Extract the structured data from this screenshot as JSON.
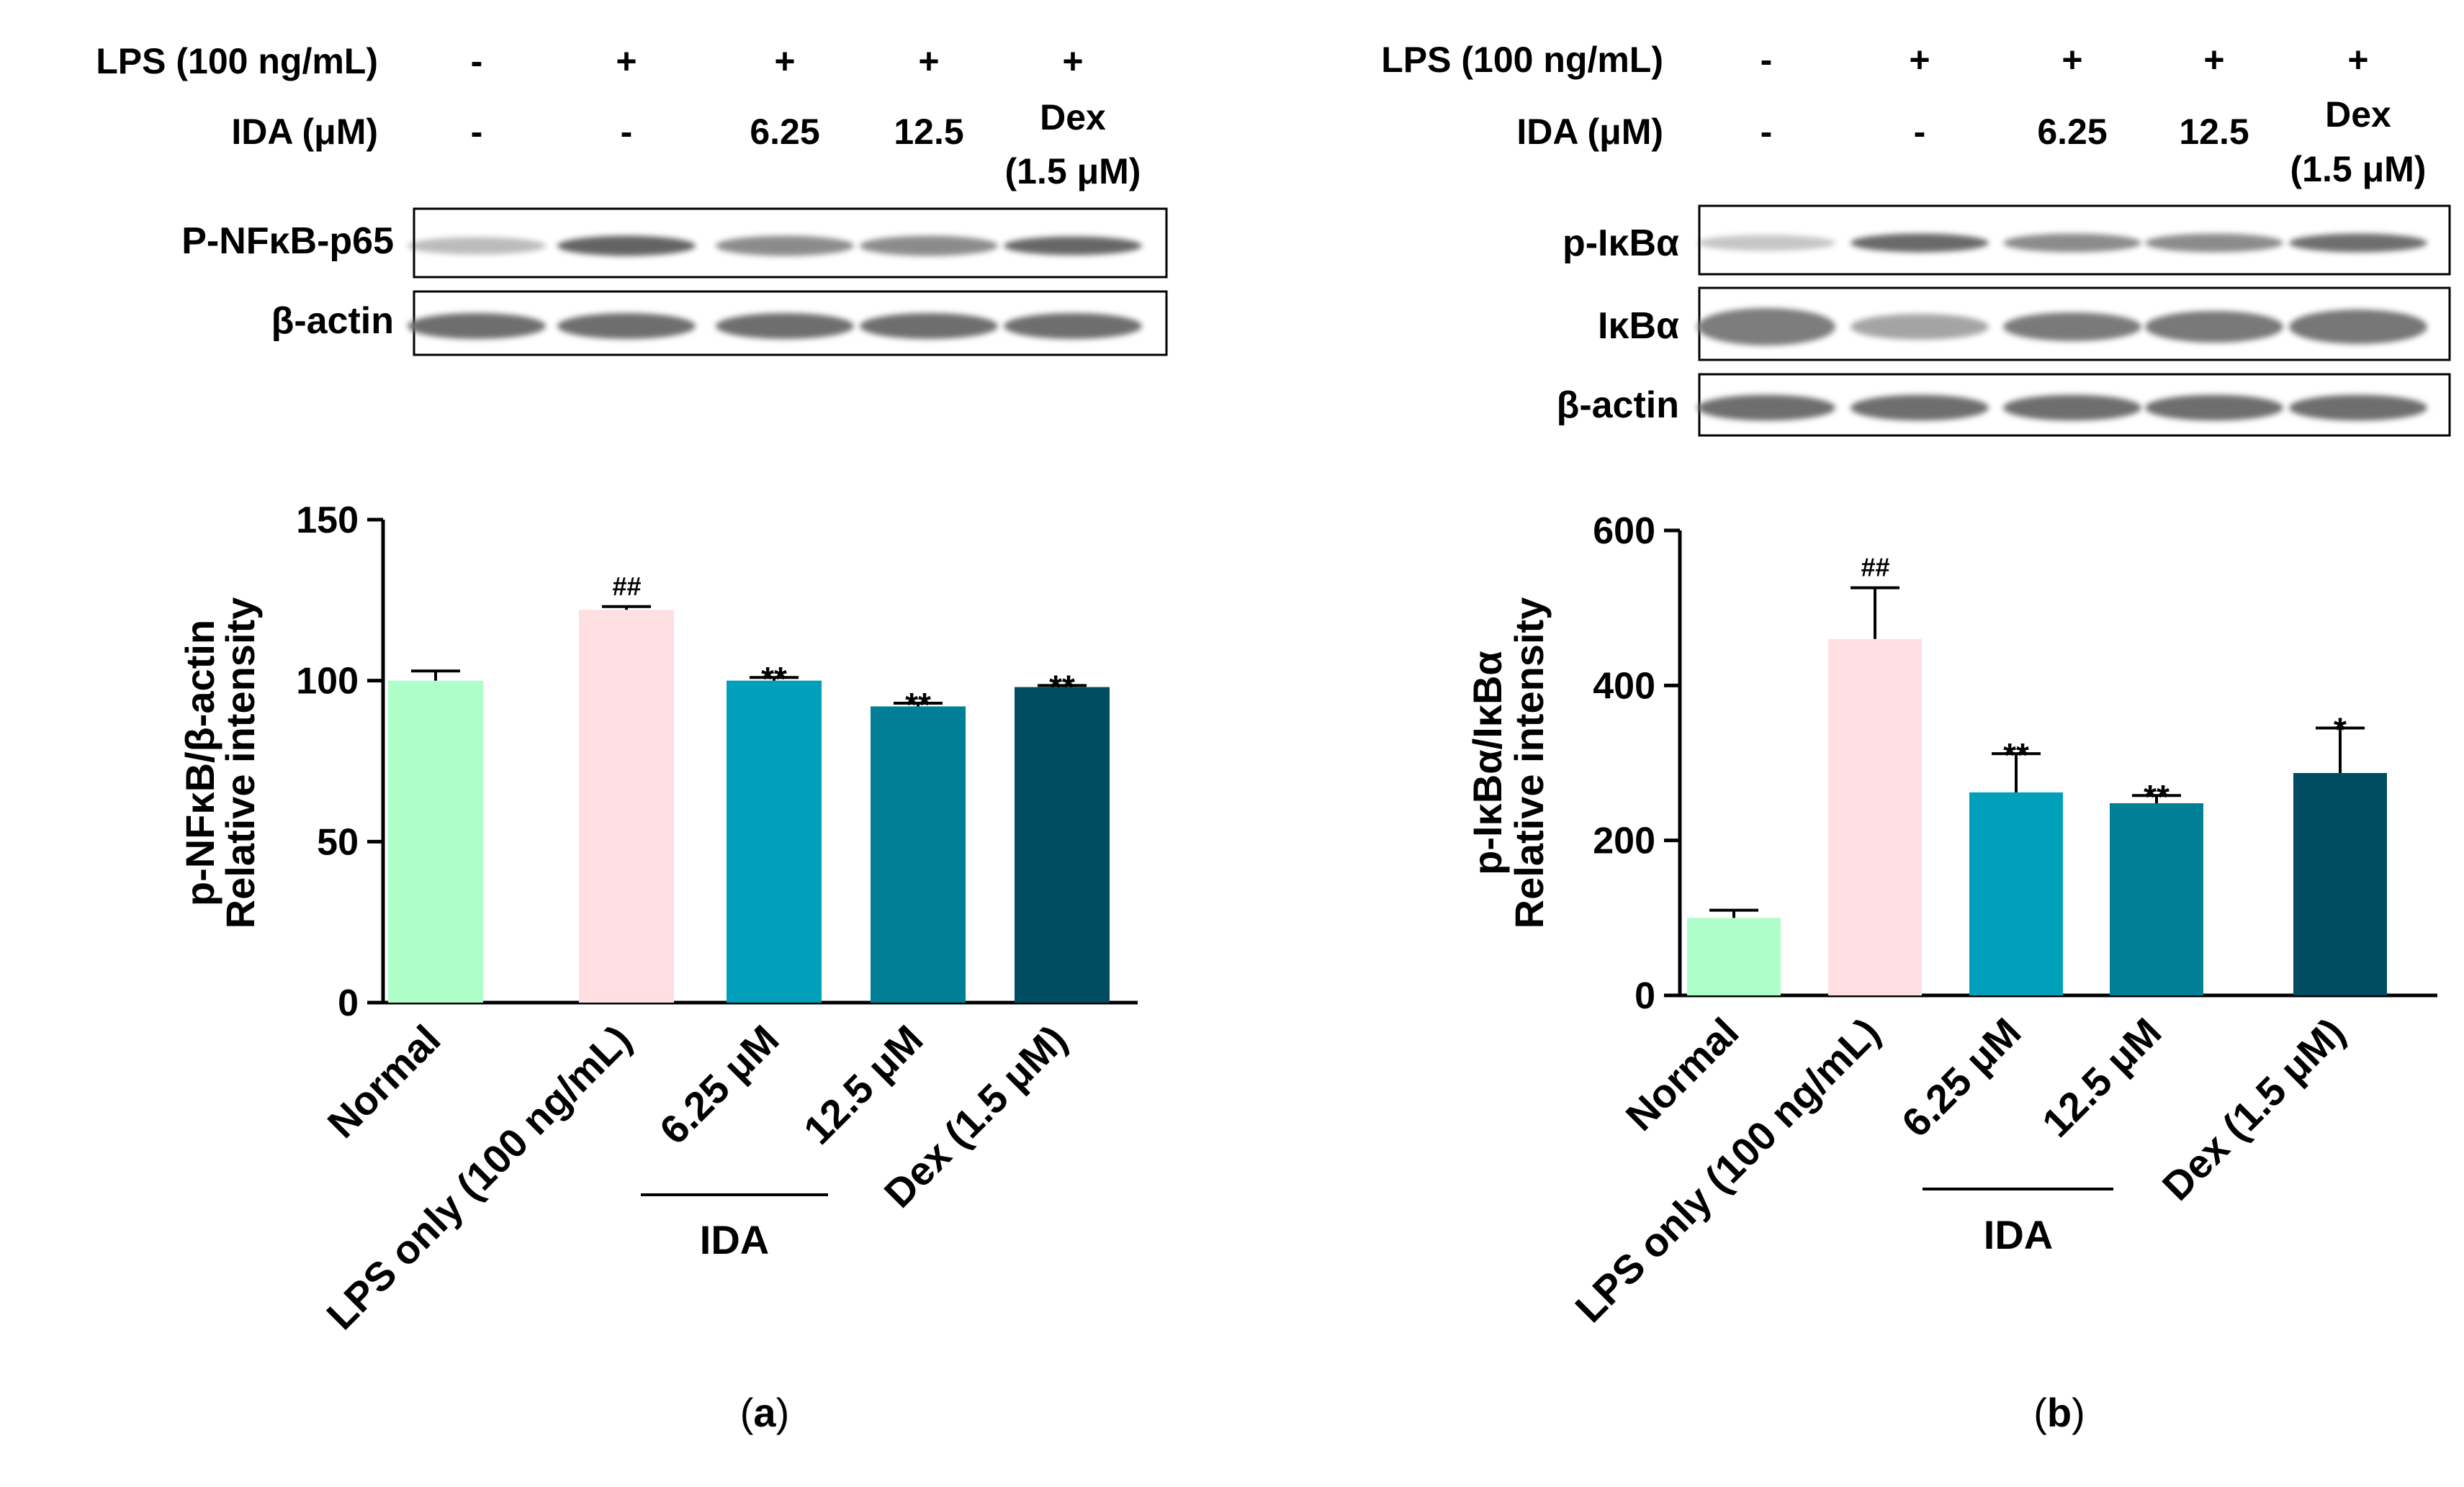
{
  "panels": [
    {
      "label": "a",
      "treatment_header": {
        "lps_label": "LPS  (100 ng/mL)",
        "lps_values": [
          "-",
          "+",
          "+",
          "+",
          "+"
        ],
        "ida_label": "IDA (μM)",
        "ida_values": [
          "-",
          "-",
          "6.25",
          "12.5",
          "Dex"
        ],
        "dex_note": "(1.5 μM)"
      },
      "blots": [
        "P-NFκB-p65",
        "β-actin"
      ],
      "group_label": "IDA"
    },
    {
      "label": "b",
      "treatment_header": {
        "lps_label": "LPS  (100 ng/mL)",
        "lps_values": [
          "-",
          "+",
          "+",
          "+",
          "+"
        ],
        "ida_label": "IDA (μM)",
        "ida_values": [
          "-",
          "-",
          "6.25",
          "12.5",
          "Dex"
        ],
        "dex_note": "(1.5 μM)"
      },
      "blots": [
        "p-IκBα",
        "IκBα",
        "β-actin"
      ],
      "group_label": "IDA"
    }
  ],
  "chart_data": [
    {
      "type": "bar",
      "title": "",
      "ylabel_line1": "p-NFκB/β-actin",
      "ylabel_line2": "Relative intensity",
      "xlabel": "",
      "categories": [
        "Normal",
        "LPS only (100 ng/mL)",
        "6.25 μM",
        "12.5 μM",
        "Dex (1.5 μM)"
      ],
      "values": [
        100,
        122,
        100,
        92,
        98
      ],
      "errors": [
        3,
        1,
        1,
        1,
        0.5
      ],
      "significance": [
        "",
        "##",
        "**",
        "**",
        "**"
      ],
      "ylim": [
        0,
        150
      ],
      "yticks": [
        0,
        50,
        100,
        150
      ],
      "colors": [
        "#adfec9",
        "#ffdfe2",
        "#009fba",
        "#007f97",
        "#004d61"
      ],
      "grid": false
    },
    {
      "type": "bar",
      "title": "",
      "ylabel_line1": "p-IκBα/IκBα",
      "ylabel_line2": "Relative intensity",
      "xlabel": "",
      "categories": [
        "Normal",
        "LPS only (100 ng/mL)",
        "6.25 μM",
        "12.5 μM",
        "Dex (1.5 μM)"
      ],
      "values": [
        100,
        460,
        262,
        248,
        287
      ],
      "errors": [
        10,
        66,
        50,
        10,
        58
      ],
      "significance": [
        "",
        "##",
        "**",
        "**",
        "*"
      ],
      "ylim": [
        0,
        600
      ],
      "yticks": [
        0,
        200,
        400,
        600
      ],
      "colors": [
        "#adfec9",
        "#ffdfe2",
        "#009fba",
        "#007f97",
        "#004d61"
      ],
      "grid": false
    }
  ]
}
